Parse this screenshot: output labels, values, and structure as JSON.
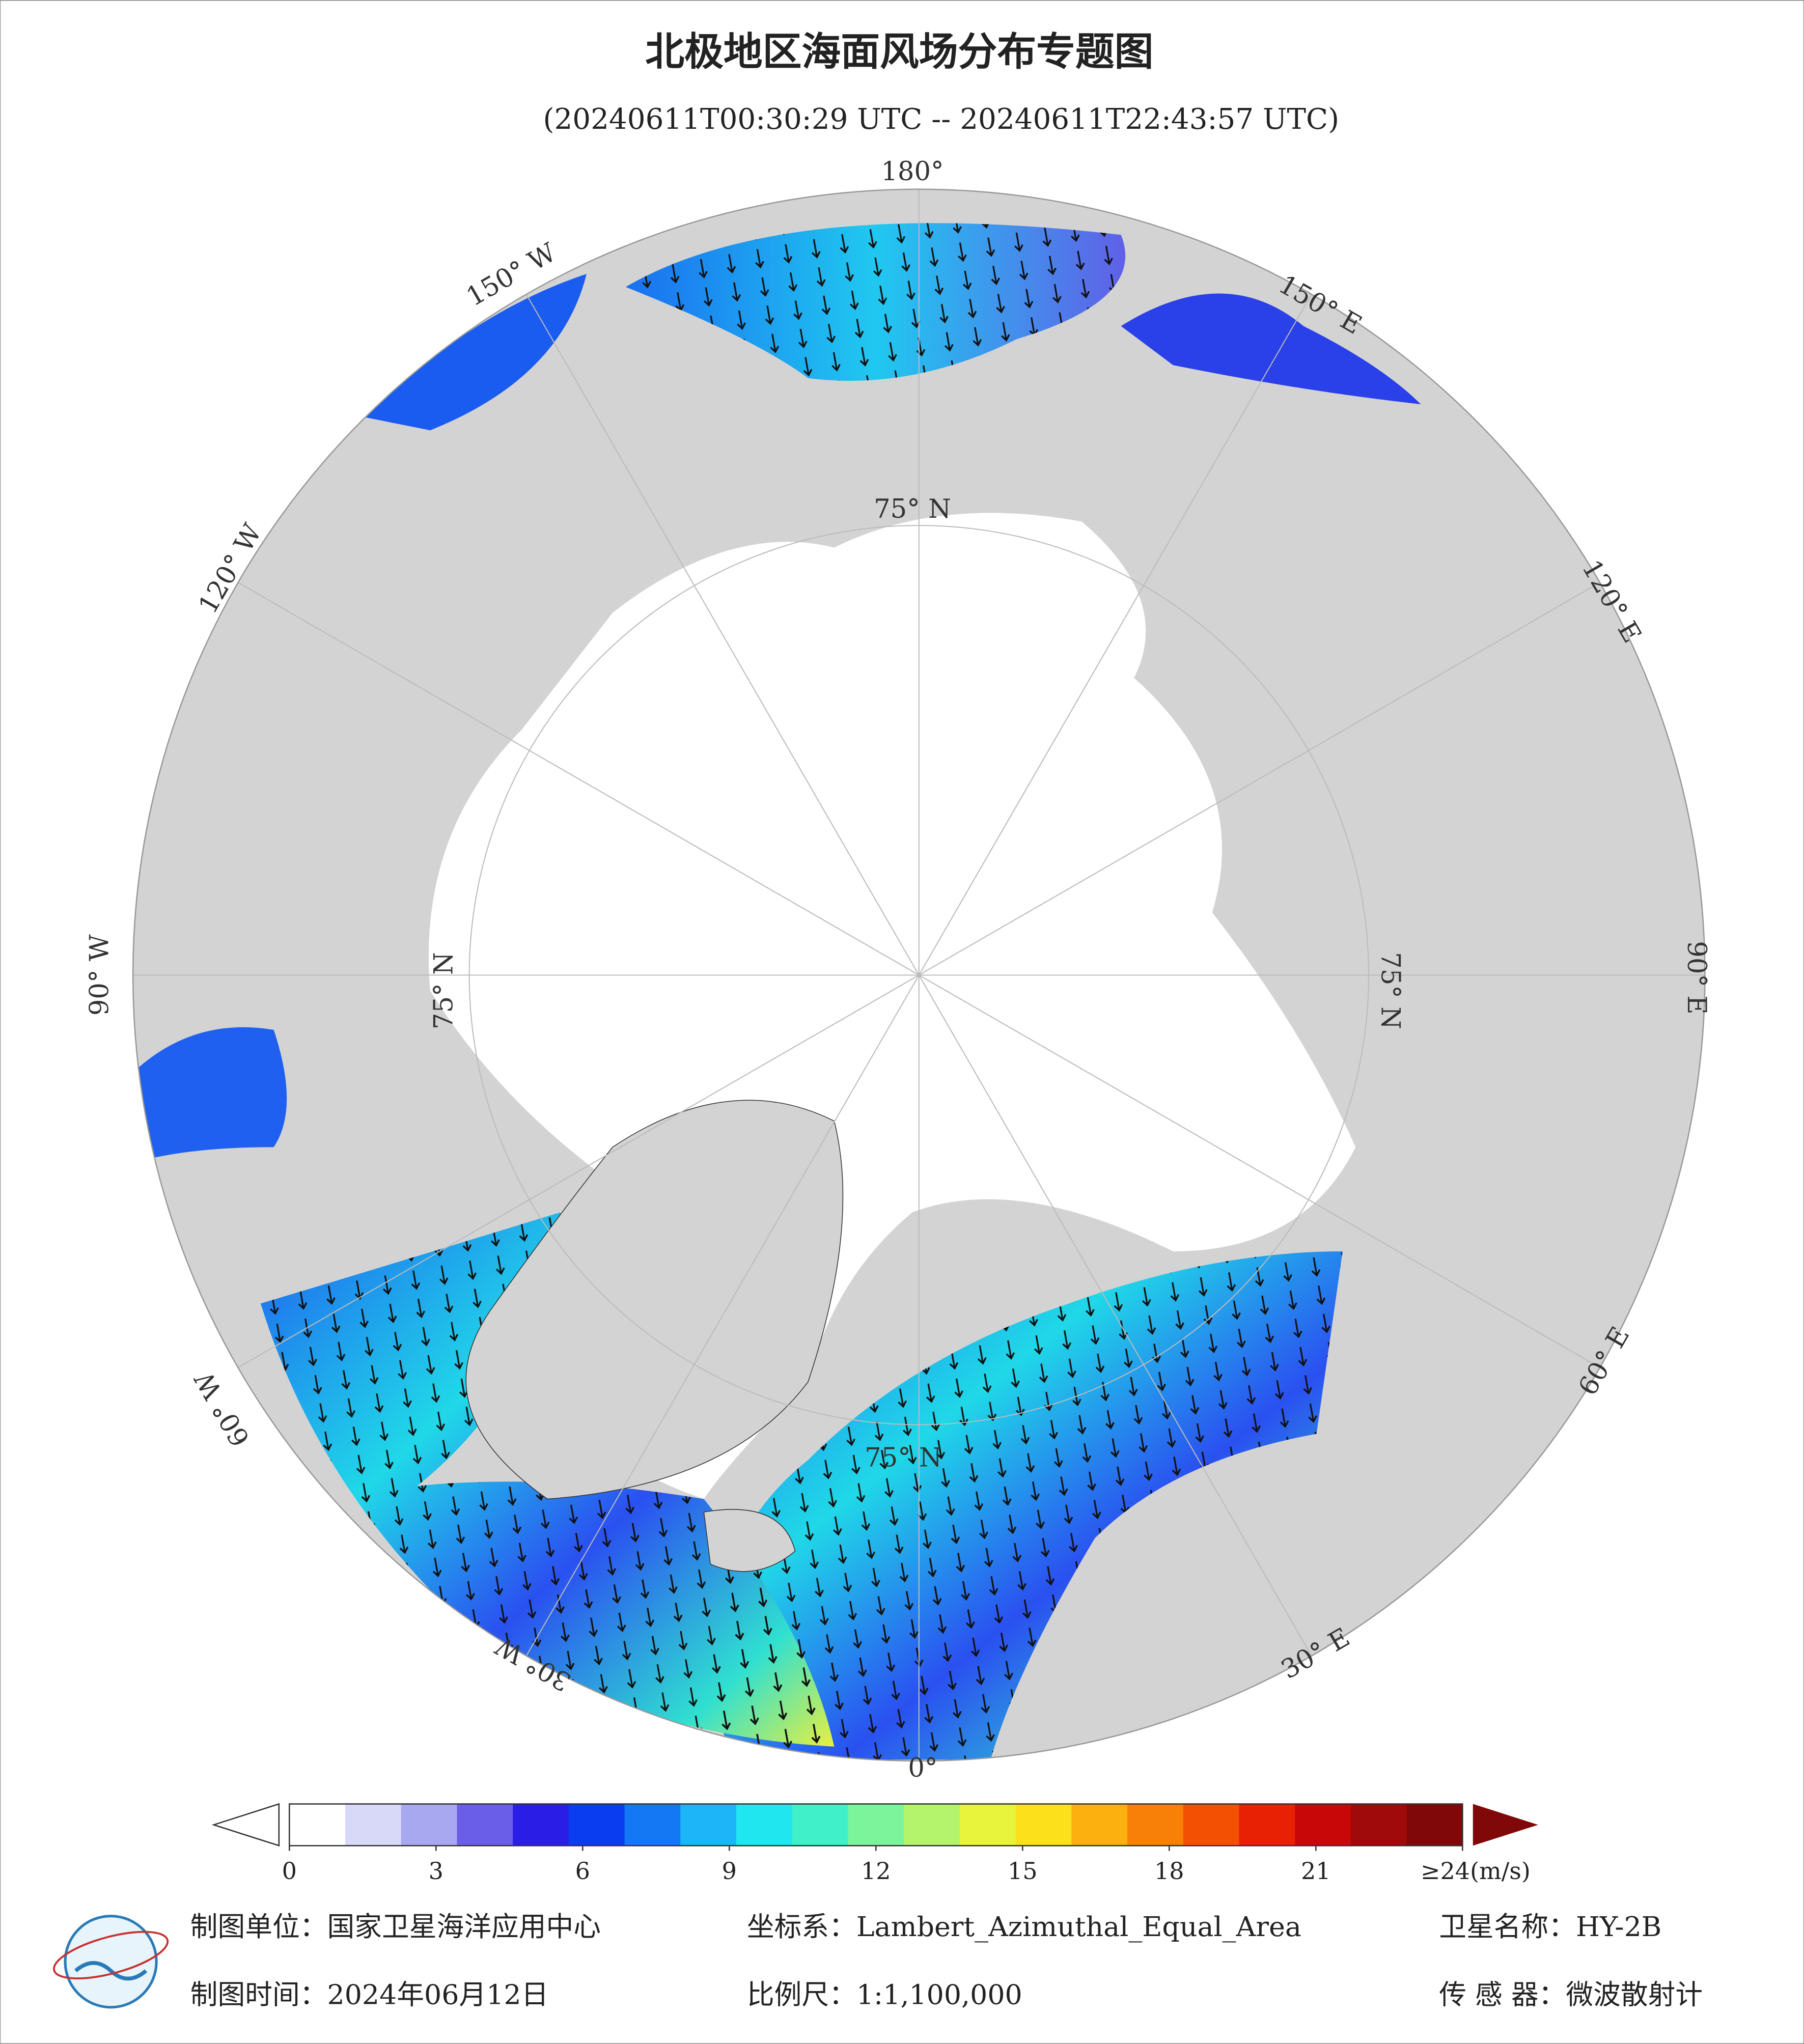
{
  "header": {
    "title": "北极地区海面风场分布专题图",
    "subtitle": "(20240611T00:30:29 UTC -- 20240611T22:43:57 UTC)"
  },
  "map": {
    "lon_labels": [
      "180°",
      "150° W",
      "120° W",
      "90° W",
      "60° W",
      "30° W",
      "0°",
      "30° E",
      "60° E",
      "90° E",
      "120° E",
      "150° E"
    ],
    "lat_labels": [
      "75° N",
      "75° N",
      "75° N",
      "75° N"
    ]
  },
  "colorbar": {
    "ticks": [
      0,
      3,
      6,
      9,
      12,
      15,
      18,
      21,
      {
        "value": 24,
        "label": "≥24(m/s)"
      }
    ],
    "colors": [
      "#ffffff",
      "#d8d8f8",
      "#a8a8f0",
      "#6a5ee8",
      "#2a1ee6",
      "#0a3cf0",
      "#1478f5",
      "#1eb4f8",
      "#20e6f0",
      "#40f0c8",
      "#7cf49c",
      "#b4f46c",
      "#e8f43c",
      "#fce01c",
      "#fcb010",
      "#f88008",
      "#f45004",
      "#e82004",
      "#c80808",
      "#a00a0a",
      "#800808"
    ]
  },
  "footer": {
    "unit": "制图单位：国家卫星海洋应用中心",
    "crs": "坐标系：Lambert_Azimuthal_Equal_Area",
    "satellite": "卫星名称：HY-2B",
    "date": "制图时间：2024年06月12日",
    "scale": "比例尺：1:1,100,000",
    "sensor": "传 感 器：微波散射计"
  }
}
